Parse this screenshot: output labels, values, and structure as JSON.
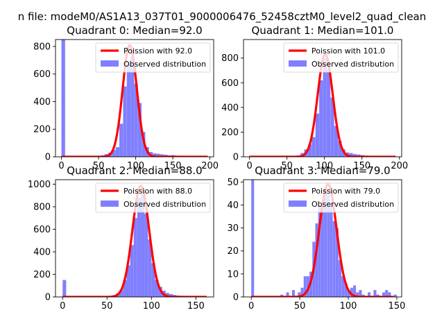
{
  "figure": {
    "suptitle": "n file: modeM0/AS1A13_037T01_9000006476_52458cztM0_level2_quad_clean"
  },
  "colors": {
    "hist": "#8080ff",
    "fit": "#ff0000",
    "axis": "#000000"
  },
  "chart_data": [
    {
      "type": "bar",
      "title": "Quadrant 0: Median=92.0",
      "xlim": [
        -8,
        205
      ],
      "ylim": [
        0,
        850
      ],
      "xticks": [
        0,
        50,
        100,
        150,
        200
      ],
      "yticks": [
        0,
        200,
        400,
        600,
        800
      ],
      "xtick_labels": [
        "0",
        "50",
        "100",
        "150",
        "200"
      ],
      "ytick_labels": [
        "0",
        "200",
        "400",
        "600",
        "800"
      ],
      "bin_width": 4.9,
      "bin_starts": [
        0,
        53,
        58,
        63,
        68,
        73,
        78,
        83,
        88,
        93,
        98,
        103,
        108,
        113,
        118,
        123,
        128,
        133,
        138,
        143,
        148,
        153,
        158,
        163,
        168,
        173,
        178,
        183,
        188,
        193
      ],
      "counts": [
        850,
        10,
        20,
        30,
        50,
        70,
        240,
        510,
        670,
        730,
        530,
        390,
        180,
        70,
        35,
        25,
        22,
        18,
        15,
        10,
        12,
        8,
        6,
        5,
        5,
        4,
        3,
        3,
        2,
        2
      ],
      "fit_lambda": 92.0,
      "fit_peak": 810,
      "legend": {
        "fit": "Poission with 92.0",
        "hist": "Observed distribution",
        "position": "upper right"
      }
    },
    {
      "type": "bar",
      "title": "Quadrant 1: Median=101.0",
      "xlim": [
        -8,
        203
      ],
      "ylim": [
        0,
        950
      ],
      "xticks": [
        0,
        50,
        100,
        150,
        200
      ],
      "yticks": [
        0,
        200,
        400,
        600,
        800
      ],
      "xtick_labels": [
        "0",
        "50",
        "100",
        "150",
        "200"
      ],
      "ytick_labels": [
        "0",
        "200",
        "400",
        "600",
        "800"
      ],
      "bin_width": 4.9,
      "bin_starts": [
        0,
        58,
        63,
        68,
        73,
        78,
        83,
        88,
        93,
        98,
        103,
        108,
        113,
        118,
        123,
        128,
        133,
        138,
        143,
        148,
        153,
        158,
        163,
        168,
        173,
        178,
        183,
        188
      ],
      "counts": [
        8,
        5,
        10,
        30,
        60,
        100,
        160,
        350,
        620,
        800,
        710,
        480,
        250,
        130,
        60,
        35,
        30,
        22,
        18,
        14,
        10,
        8,
        6,
        5,
        4,
        3,
        3,
        2
      ],
      "fit_lambda": 101.0,
      "fit_peak": 830,
      "legend": {
        "fit": "Poission with 101.0",
        "hist": "Observed distribution",
        "position": "upper right"
      }
    },
    {
      "type": "bar",
      "title": "Quadrant 2: Median=88.0",
      "xlim": [
        -8,
        170
      ],
      "ylim": [
        0,
        1040
      ],
      "xticks": [
        0,
        50,
        100,
        150
      ],
      "yticks": [
        0,
        200,
        400,
        600,
        800,
        1000
      ],
      "xtick_labels": [
        "0",
        "50",
        "100",
        "150"
      ],
      "ytick_labels": [
        "0",
        "200",
        "400",
        "600",
        "800",
        "1000"
      ],
      "bin_width": 4.0,
      "bin_starts": [
        0,
        48,
        52,
        56,
        60,
        64,
        68,
        72,
        76,
        80,
        84,
        88,
        92,
        96,
        100,
        104,
        108,
        112,
        116,
        120,
        124,
        128,
        132,
        136,
        140,
        144,
        148,
        152,
        156
      ],
      "counts": [
        150,
        5,
        8,
        15,
        30,
        60,
        150,
        280,
        460,
        700,
        880,
        910,
        740,
        510,
        300,
        150,
        90,
        55,
        35,
        25,
        18,
        12,
        10,
        8,
        6,
        5,
        4,
        3,
        3
      ],
      "fit_lambda": 88.0,
      "fit_peak": 985,
      "legend": {
        "fit": "Poission with 88.0",
        "hist": "Observed distribution",
        "position": "upper right"
      }
    },
    {
      "type": "bar",
      "title": "Quadrant 3: Median=79.0",
      "xlim": [
        -8,
        155
      ],
      "ylim": [
        0,
        51
      ],
      "xticks": [
        0,
        50,
        100,
        150
      ],
      "yticks": [
        0,
        10,
        20,
        30,
        40,
        50
      ],
      "xtick_labels": [
        "0",
        "50",
        "100",
        "150"
      ],
      "ytick_labels": [
        "0",
        "10",
        "20",
        "30",
        "40",
        "50"
      ],
      "bin_width": 2.9,
      "bin_starts": [
        0,
        30,
        36,
        42,
        48,
        51,
        54,
        57,
        60,
        63,
        66,
        69,
        72,
        75,
        78,
        81,
        84,
        87,
        90,
        93,
        96,
        99,
        102,
        105,
        108,
        111,
        114,
        120,
        126,
        129,
        135,
        138,
        141,
        147
      ],
      "counts": [
        51,
        1,
        2,
        3,
        2,
        4,
        9,
        9,
        11,
        24,
        32,
        40,
        41,
        47,
        45,
        41,
        33,
        30,
        16,
        9,
        6,
        3,
        4,
        5,
        2,
        3,
        1,
        2,
        3,
        1,
        2,
        3,
        2,
        1
      ],
      "fit_lambda": 79.0,
      "fit_peak": 49,
      "legend": {
        "fit": "Poission with 79.0",
        "hist": "Observed distribution",
        "position": "upper right"
      }
    }
  ]
}
